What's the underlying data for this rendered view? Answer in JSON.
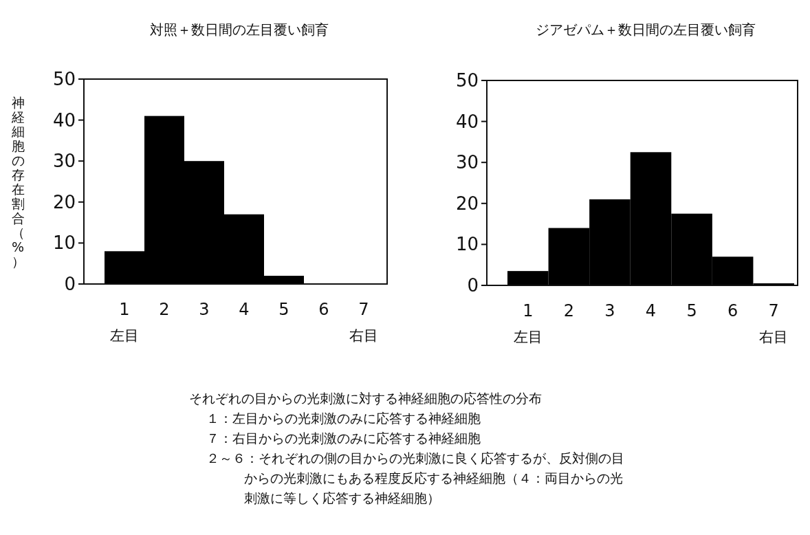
{
  "chart_data": [
    {
      "type": "bar",
      "title": "対照＋数日間の左目覆い飼育",
      "ylabel": "神経細胞の存在割合（%）",
      "categories": [
        "1",
        "2",
        "3",
        "4",
        "5",
        "6",
        "7"
      ],
      "values": [
        8,
        41,
        30,
        17,
        2,
        0,
        0
      ],
      "color": "#000000",
      "ylim": [
        0,
        50
      ],
      "yticks": [
        0,
        10,
        20,
        30,
        40,
        50
      ],
      "annotations": [
        "左目",
        "右目",
        "それぞれの目からの光刺激に対する神経細胞の応答性の分布",
        "１：左目からの光刺激のみに応答する神経細胞",
        "７：右目からの光刺激のみに応答する神経細胞",
        "２～６：それぞれの側の目からの光刺激に良く応答するが、反対側の目からの光刺激にもある程度反応する神経細胞（４：両目からの光刺激に等しく応答する神経細胞）"
      ]
    },
    {
      "type": "bar",
      "title": "ジアゼパム＋数日間の左目覆い飼育",
      "categories": [
        "1",
        "2",
        "3",
        "4",
        "5",
        "6",
        "7"
      ],
      "values": [
        3.5,
        14,
        21,
        32.5,
        17.5,
        7,
        0.5
      ],
      "color": "#000000",
      "ylim": [
        0,
        50
      ],
      "yticks": [
        0,
        10,
        20,
        30,
        40,
        50
      ],
      "annotations": [
        "左目",
        "右目"
      ]
    }
  ]
}
